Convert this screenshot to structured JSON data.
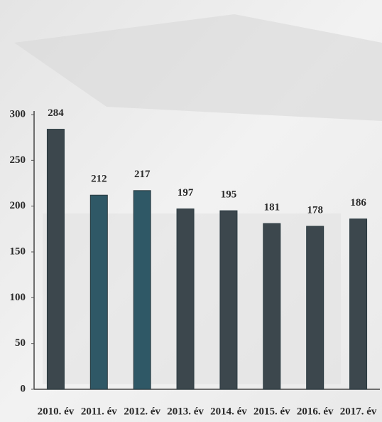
{
  "chart_data": {
    "type": "bar",
    "categories": [
      "2010. év",
      "2011. év",
      "2012. év",
      "2013. év",
      "2014. év",
      "2015. év",
      "2016. év",
      "2017. év"
    ],
    "values": [
      284,
      212,
      217,
      197,
      195,
      181,
      178,
      186
    ],
    "colors": [
      "#3c474d",
      "#2f5866",
      "#2f5866",
      "#3c474d",
      "#3c474d",
      "#3c474d",
      "#3c474d",
      "#3c474d"
    ],
    "ylim": [
      0,
      300
    ],
    "yticks": [
      0,
      50,
      100,
      150,
      200,
      250,
      300
    ],
    "grid": false
  }
}
